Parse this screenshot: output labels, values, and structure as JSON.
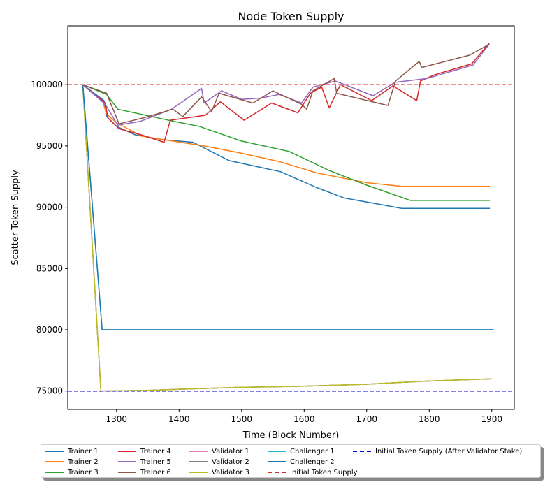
{
  "chart_data": {
    "type": "line",
    "title": "Node Token Supply",
    "xlabel": "Time (Block Number)",
    "ylabel": "Scatter Token Supply",
    "xlim": [
      1222,
      1936
    ],
    "ylim": [
      73500,
      104800
    ],
    "xticks": [
      1300,
      1400,
      1500,
      1600,
      1700,
      1800,
      1900
    ],
    "yticks": [
      75000,
      80000,
      85000,
      90000,
      95000,
      100000
    ],
    "xtick_labels": [
      "1300",
      "1400",
      "1500",
      "1600",
      "1700",
      "1800",
      "1900"
    ],
    "ytick_labels": [
      "75000",
      "80000",
      "85000",
      "90000",
      "95000",
      "100000"
    ],
    "grid": false,
    "legend_position": "below",
    "series": [
      {
        "name": "Trainer 1",
        "color": "#1f77b4",
        "dash": "solid",
        "points": [
          [
            1246,
            100000
          ],
          [
            1280,
            98700
          ],
          [
            1284,
            97400
          ],
          [
            1300,
            96600
          ],
          [
            1330,
            95900
          ],
          [
            1376,
            95500
          ],
          [
            1422,
            95300
          ],
          [
            1480,
            93800
          ],
          [
            1562,
            92900
          ],
          [
            1620,
            91600
          ],
          [
            1664,
            90750
          ],
          [
            1756,
            89900
          ],
          [
            1897,
            89900
          ]
        ]
      },
      {
        "name": "Trainer 2",
        "color": "#ff7f0e",
        "dash": "solid",
        "points": [
          [
            1246,
            100000
          ],
          [
            1278,
            98600
          ],
          [
            1284,
            97600
          ],
          [
            1300,
            96900
          ],
          [
            1340,
            95800
          ],
          [
            1440,
            95000
          ],
          [
            1500,
            94400
          ],
          [
            1562,
            93700
          ],
          [
            1620,
            92800
          ],
          [
            1700,
            92000
          ],
          [
            1756,
            91700
          ],
          [
            1897,
            91700
          ]
        ]
      },
      {
        "name": "Trainer 3",
        "color": "#2ca02c",
        "dash": "solid",
        "points": [
          [
            1246,
            100000
          ],
          [
            1284,
            99200
          ],
          [
            1302,
            98000
          ],
          [
            1392,
            97000
          ],
          [
            1432,
            96600
          ],
          [
            1500,
            95400
          ],
          [
            1576,
            94550
          ],
          [
            1640,
            93000
          ],
          [
            1700,
            91800
          ],
          [
            1770,
            90550
          ],
          [
            1897,
            90550
          ]
        ]
      },
      {
        "name": "Trainer 4",
        "color": "#d62728",
        "dash": "solid",
        "points": [
          [
            1246,
            100000
          ],
          [
            1282,
            98500
          ],
          [
            1286,
            97300
          ],
          [
            1304,
            96400
          ],
          [
            1340,
            95900
          ],
          [
            1376,
            95300
          ],
          [
            1386,
            97100
          ],
          [
            1442,
            97500
          ],
          [
            1466,
            98600
          ],
          [
            1504,
            97100
          ],
          [
            1548,
            98500
          ],
          [
            1590,
            97700
          ],
          [
            1610,
            99300
          ],
          [
            1628,
            99800
          ],
          [
            1640,
            98100
          ],
          [
            1658,
            100000
          ],
          [
            1708,
            98700
          ],
          [
            1742,
            99900
          ],
          [
            1780,
            98700
          ],
          [
            1786,
            100300
          ],
          [
            1808,
            100800
          ],
          [
            1868,
            101700
          ],
          [
            1896,
            103400
          ]
        ]
      },
      {
        "name": "Trainer 5",
        "color": "#9467bd",
        "dash": "solid",
        "points": [
          [
            1246,
            100000
          ],
          [
            1282,
            98400
          ],
          [
            1302,
            96700
          ],
          [
            1338,
            97000
          ],
          [
            1388,
            98000
          ],
          [
            1436,
            99700
          ],
          [
            1440,
            98500
          ],
          [
            1468,
            99500
          ],
          [
            1500,
            98800
          ],
          [
            1530,
            98900
          ],
          [
            1560,
            99200
          ],
          [
            1596,
            98500
          ],
          [
            1614,
            99800
          ],
          [
            1650,
            100300
          ],
          [
            1710,
            99100
          ],
          [
            1746,
            100200
          ],
          [
            1796,
            100500
          ],
          [
            1870,
            101600
          ],
          [
            1896,
            103300
          ]
        ]
      },
      {
        "name": "Trainer 6",
        "color": "#8c564b",
        "dash": "solid",
        "points": [
          [
            1246,
            100000
          ],
          [
            1284,
            99300
          ],
          [
            1304,
            96800
          ],
          [
            1344,
            97300
          ],
          [
            1390,
            98000
          ],
          [
            1406,
            97400
          ],
          [
            1436,
            99000
          ],
          [
            1452,
            97800
          ],
          [
            1464,
            99300
          ],
          [
            1518,
            98500
          ],
          [
            1550,
            99500
          ],
          [
            1596,
            98400
          ],
          [
            1604,
            98000
          ],
          [
            1614,
            99500
          ],
          [
            1648,
            100500
          ],
          [
            1652,
            99300
          ],
          [
            1734,
            98300
          ],
          [
            1746,
            100300
          ],
          [
            1784,
            101900
          ],
          [
            1788,
            101400
          ],
          [
            1864,
            102400
          ],
          [
            1896,
            103300
          ]
        ]
      },
      {
        "name": "Validator 1",
        "color": "#e377c2",
        "dash": "solid",
        "points": [
          [
            1246,
            100000
          ],
          [
            1275,
            75000
          ],
          [
            1350,
            75050
          ],
          [
            1430,
            75200
          ],
          [
            1500,
            75300
          ],
          [
            1600,
            75400
          ],
          [
            1700,
            75550
          ],
          [
            1790,
            75800
          ],
          [
            1900,
            76000
          ]
        ]
      },
      {
        "name": "Validator 2",
        "color": "#7f7f7f",
        "dash": "solid",
        "points": [
          [
            1246,
            100000
          ],
          [
            1275,
            75000
          ],
          [
            1350,
            75050
          ],
          [
            1430,
            75200
          ],
          [
            1500,
            75300
          ],
          [
            1600,
            75400
          ],
          [
            1700,
            75550
          ],
          [
            1790,
            75800
          ],
          [
            1900,
            76000
          ]
        ]
      },
      {
        "name": "Validator 3",
        "color": "#bcbd22",
        "dash": "solid",
        "points": [
          [
            1246,
            100000
          ],
          [
            1275,
            75000
          ],
          [
            1350,
            75050
          ],
          [
            1430,
            75200
          ],
          [
            1500,
            75300
          ],
          [
            1600,
            75400
          ],
          [
            1700,
            75550
          ],
          [
            1790,
            75800
          ],
          [
            1900,
            76000
          ]
        ]
      },
      {
        "name": "Challenger 1",
        "color": "#17becf",
        "dash": "solid",
        "points": [
          [
            1246,
            100000
          ],
          [
            1277,
            80000
          ],
          [
            1903,
            80000
          ]
        ]
      },
      {
        "name": "Challenger 2",
        "color": "#1f77b4",
        "dash": "solid",
        "points": [
          [
            1246,
            100000
          ],
          [
            1277,
            80000
          ],
          [
            1903,
            80000
          ]
        ]
      },
      {
        "name": "Initial Token Supply",
        "color": "#d62728",
        "dash": "dashed",
        "hline": 100000
      },
      {
        "name": "Initial Token Supply (After Validator Stake)",
        "color": "#0000cc",
        "dash": "dashed",
        "hline": 75000
      }
    ]
  }
}
